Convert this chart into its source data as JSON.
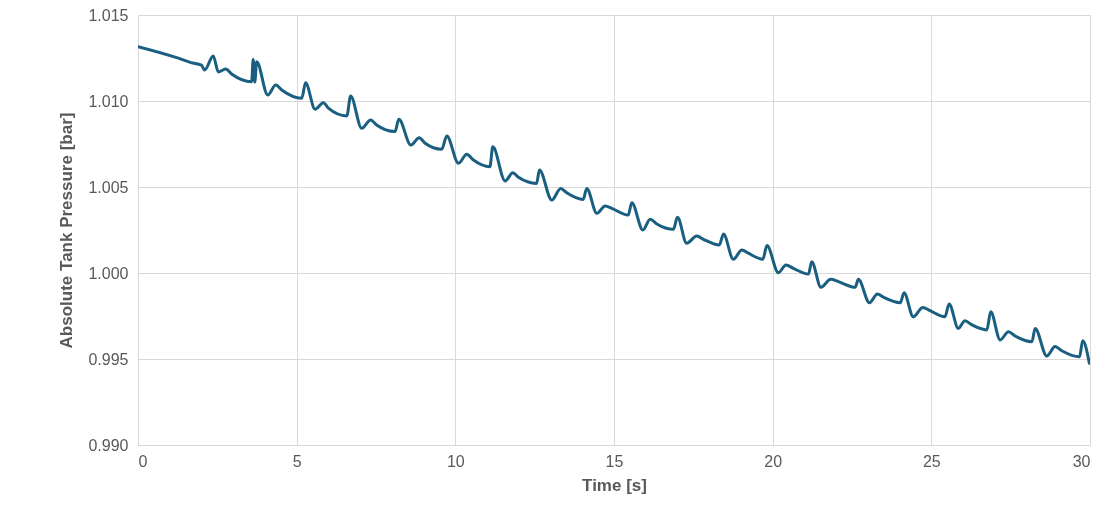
{
  "chart_data": {
    "type": "line",
    "xlabel": "Time [s]",
    "ylabel": "Absolute Tank Pressure [bar]",
    "xlim": [
      0,
      30
    ],
    "xticks": [
      0,
      5,
      10,
      15,
      20,
      25,
      30
    ],
    "ylim": [
      0.99,
      1.015
    ],
    "yticks": [
      {
        "value": 0.99,
        "label": "0.990"
      },
      {
        "value": 0.995,
        "label": "0.995"
      },
      {
        "value": 1.0,
        "label": "1.000"
      },
      {
        "value": 1.005,
        "label": "1.005"
      },
      {
        "value": 1.01,
        "label": "1.010"
      },
      {
        "value": 1.015,
        "label": "1.015"
      }
    ],
    "grid": true,
    "marker": "none",
    "line_style": "solid",
    "series": [
      {
        "color": "#1a5f80",
        "x": [
          0,
          1.22,
          1.67,
          2.0,
          2.1,
          2.37,
          2.53,
          2.76,
          2.95,
          3.58,
          3.63,
          3.68,
          3.74,
          4.09,
          4.34,
          4.53,
          5.16,
          5.28,
          5.58,
          5.84,
          6.0,
          6.58,
          6.7,
          7.05,
          7.33,
          7.52,
          8.1,
          8.22,
          8.6,
          8.86,
          9.05,
          9.57,
          9.73,
          10.1,
          10.36,
          10.57,
          11.09,
          11.18,
          11.57,
          11.81,
          11.99,
          12.56,
          12.65,
          13.04,
          13.32,
          13.51,
          14.03,
          14.14,
          14.46,
          14.72,
          14.93,
          15.45,
          15.56,
          15.91,
          16.14,
          16.35,
          16.87,
          17.0,
          17.29,
          17.61,
          17.82,
          18.32,
          18.45,
          18.76,
          19.03,
          19.23,
          19.69,
          19.82,
          20.18,
          20.42,
          20.65,
          21.13,
          21.23,
          21.52,
          21.83,
          22.07,
          22.6,
          22.7,
          23.05,
          23.3,
          23.49,
          24.02,
          24.14,
          24.43,
          24.73,
          24.96,
          25.43,
          25.56,
          25.85,
          26.06,
          26.28,
          26.75,
          26.87,
          27.17,
          27.43,
          27.64,
          28.17,
          28.27,
          28.64,
          28.9,
          29.11,
          29.67,
          29.77,
          29.98
        ],
        "values": [
          1.01316,
          1.01252,
          1.01223,
          1.01209,
          1.0118,
          1.01262,
          1.01169,
          1.01186,
          1.01157,
          1.01112,
          1.01242,
          1.0111,
          1.01228,
          1.01035,
          1.01093,
          1.01064,
          1.01016,
          1.01106,
          1.00952,
          1.0099,
          1.00958,
          1.00913,
          1.01029,
          1.00841,
          1.0089,
          1.0086,
          1.00822,
          1.00894,
          1.00744,
          1.00787,
          1.00754,
          1.00719,
          1.00797,
          1.00638,
          1.0069,
          1.00657,
          1.00618,
          1.00734,
          1.00535,
          1.00583,
          1.00556,
          1.00521,
          1.00599,
          1.00424,
          1.00492,
          1.00467,
          1.00428,
          1.00492,
          1.00347,
          1.0039,
          1.00376,
          1.00337,
          1.00409,
          1.0025,
          1.00312,
          1.00285,
          1.00254,
          1.00324,
          1.00173,
          1.00215,
          1.00196,
          1.00163,
          1.00227,
          1.0008,
          1.00134,
          1.00115,
          1.0008,
          1.0016,
          1.00002,
          1.00047,
          1.00027,
          0.99994,
          1.00066,
          0.99917,
          0.99963,
          0.9995,
          0.99917,
          0.99963,
          0.99827,
          0.99878,
          0.99859,
          0.99827,
          0.99885,
          0.99746,
          0.998,
          0.99781,
          0.99746,
          0.9982,
          0.99678,
          0.99722,
          0.99698,
          0.99669,
          0.99775,
          0.99611,
          0.99659,
          0.99634,
          0.99601,
          0.99678,
          0.99517,
          0.99572,
          0.99548,
          0.99513,
          0.99606,
          0.99475
        ]
      }
    ]
  }
}
